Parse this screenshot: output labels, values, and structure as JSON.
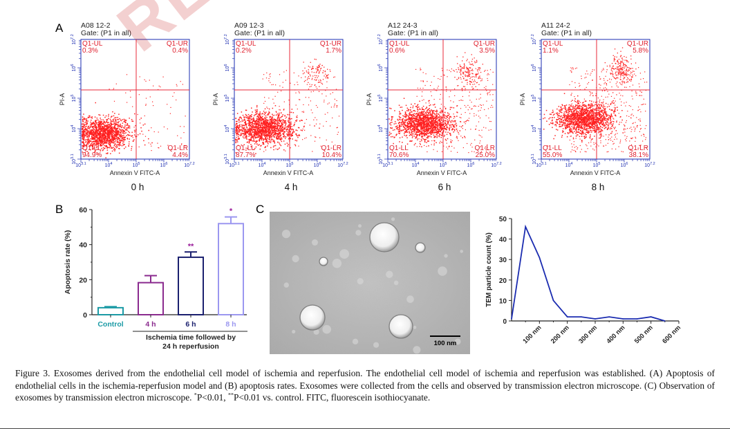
{
  "watermark": "REL",
  "panel_a": {
    "letter": "A",
    "axis_x_label": "Annexin V FITC-A",
    "axis_y_label": "PI-A",
    "x_ticks": [
      "10^3.1",
      "10^4",
      "10^5",
      "10^6",
      "10^7.2"
    ],
    "y_ticks": [
      "10^3.1",
      "10^4",
      "10^5",
      "10^6",
      "10^7.2"
    ],
    "plots": [
      {
        "sample": "A08 12-2",
        "gate": "Gate: (P1 in all)",
        "time": "0 h",
        "q1_ul": "Q1-UL",
        "q1_ul_val": "0.3%",
        "q1_ur": "Q1-UR",
        "q1_ur_val": "0.4%",
        "q1_ll": "Q1-LL",
        "q1_ll_val": "94.9%",
        "q1_lr": "Q1-LR",
        "q1_lr_val": "4.4%"
      },
      {
        "sample": "A09 12-3",
        "gate": "Gate: (P1 in all)",
        "time": "4 h",
        "q1_ul": "Q1-UL",
        "q1_ul_val": "0.2%",
        "q1_ur": "Q1-UR",
        "q1_ur_val": "1.7%",
        "q1_ll": "Q1-LL",
        "q1_ll_val": "87.7%",
        "q1_lr": "Q1-LR",
        "q1_lr_val": "10.4%"
      },
      {
        "sample": "A12 24-3",
        "gate": "Gate: (P1 in all)",
        "time": "6 h",
        "q1_ul": "Q1-UL",
        "q1_ul_val": "0.6%",
        "q1_ur": "Q1-UR",
        "q1_ur_val": "3.5%",
        "q1_ll": "Q1-LL",
        "q1_ll_val": "70.6%",
        "q1_lr": "Q1-LR",
        "q1_lr_val": "25.0%"
      },
      {
        "sample": "A11 24-2",
        "gate": "Gate: (P1 in all)",
        "time": "8 h",
        "q1_ul": "Q1-UL",
        "q1_ul_val": "1.1%",
        "q1_ur": "Q1-UR",
        "q1_ur_val": "5.8%",
        "q1_ll": "Q1-LL",
        "q1_ll_val": "55.0%",
        "q1_lr": "Q1-LR",
        "q1_lr_val": "38.1%"
      }
    ]
  },
  "panel_b": {
    "letter": "B",
    "ylabel": "Apoptosis rate (%)",
    "group_label_line1": "Ischemia  time followed by",
    "group_label_line2": "24 h reperfusion",
    "ylim": [
      0,
      60
    ],
    "y_ticks": [
      "0",
      "20",
      "40",
      "60"
    ],
    "bars": [
      {
        "label": "Control",
        "value": 4.0,
        "error": 0.6,
        "color": "#1b9aa5",
        "sig": ""
      },
      {
        "label": "4 h",
        "value": 18.3,
        "error": 4.0,
        "color": "#8a2a8e",
        "sig": ""
      },
      {
        "label": "6 h",
        "value": 32.8,
        "error": 3.0,
        "color": "#1a1f6e",
        "sig": "**"
      },
      {
        "label": "8 h",
        "value": 52.0,
        "error": 3.8,
        "color": "#9b97f0",
        "sig": "*"
      }
    ],
    "sig_color": "#9b1f9b"
  },
  "panel_c": {
    "letter": "C",
    "scalebar_label": "100 nm"
  },
  "chart_data": [
    {
      "type": "bar",
      "categories": [
        "Control",
        "4 h",
        "6 h",
        "8 h"
      ],
      "values": [
        4.0,
        18.3,
        32.8,
        52.0
      ],
      "errors": [
        0.6,
        4.0,
        3.0,
        3.8
      ],
      "ylabel": "Apoptosis rate (%)",
      "xlabel": "Ischemia  time followed by 24 h reperfusion",
      "ylim": [
        0,
        60
      ],
      "annotations": [
        "**",
        "*"
      ]
    },
    {
      "type": "line",
      "x_unit": "nm",
      "x": [
        0,
        50,
        100,
        150,
        200,
        250,
        300,
        350,
        400,
        450,
        500,
        550
      ],
      "values": [
        1,
        46,
        31,
        10,
        2,
        2,
        1,
        2,
        1,
        1,
        2,
        0
      ],
      "x_ticks": [
        "100 nm",
        "200 nm",
        "300 nm",
        "400 nm",
        "500 nm",
        "600 nm"
      ],
      "y_ticks": [
        "0",
        "10",
        "20",
        "30",
        "40",
        "50"
      ],
      "ylabel": "TEM particle count (%)",
      "ylim": [
        0,
        50
      ],
      "xlim": [
        0,
        600
      ],
      "color": "#1a2bb0"
    }
  ],
  "caption": {
    "text_a": "Figure 3. Exosomes derived from the endothelial cell model of ischemia and reperfusion. The endothelial cell model of ischemia and reperfusion was established. (A) Apoptosis of endothelial cells in the ischemia-reperfusion model and (B) apoptosis rates. Exosomes were collected from the cells and observed by transmission electron microscope. (C) Observation of exosomes by transmission electron microscope. ",
    "sup1": "*",
    "text_b": "P<0.01, ",
    "sup2": "**",
    "text_c": "P<0.01 vs. control. FITC, fluorescein isothiocyanate."
  }
}
